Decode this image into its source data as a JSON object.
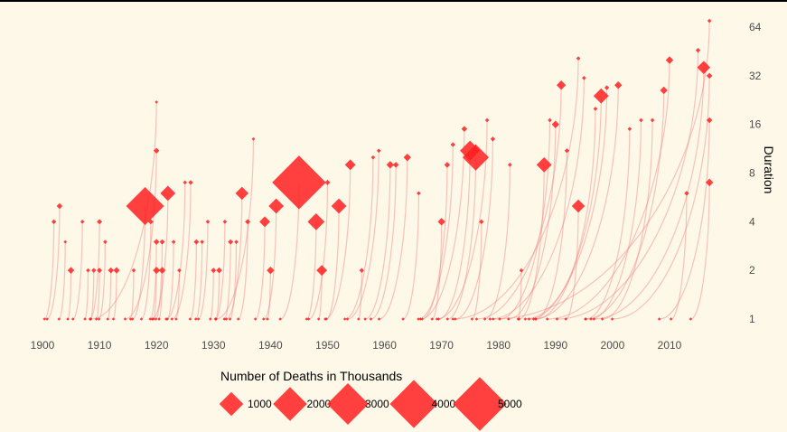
{
  "chart_data": {
    "type": "scatter",
    "x_ticks": [
      1900,
      1910,
      1920,
      1930,
      1940,
      1950,
      1960,
      1970,
      1980,
      1990,
      2000,
      2010
    ],
    "y_ticks": [
      1,
      2,
      4,
      8,
      16,
      32,
      64
    ],
    "y_scale": "log2",
    "xlim": [
      1900,
      2017
    ],
    "ylim": [
      1,
      64
    ],
    "xlabel": "",
    "ylabel": "Duration",
    "legend": {
      "title": "Number of Deaths in Thousands",
      "placement": "bottom",
      "sizes": [
        1000,
        2000,
        3000,
        4000,
        5000
      ]
    },
    "colors": {
      "point": "#ff2020",
      "curve": "#f08080",
      "background": "#fdf8e8"
    },
    "points": [
      {
        "x": 1902,
        "y": 4,
        "d": 40
      },
      {
        "x": 1903,
        "y": 5,
        "d": 60
      },
      {
        "x": 1904,
        "y": 3,
        "d": 20
      },
      {
        "x": 1905,
        "y": 2,
        "d": 80
      },
      {
        "x": 1907,
        "y": 4,
        "d": 30
      },
      {
        "x": 1908,
        "y": 2,
        "d": 30
      },
      {
        "x": 1909,
        "y": 2,
        "d": 40
      },
      {
        "x": 1910,
        "y": 2,
        "d": 50
      },
      {
        "x": 1910,
        "y": 4,
        "d": 50
      },
      {
        "x": 1911,
        "y": 3,
        "d": 30
      },
      {
        "x": 1912,
        "y": 2,
        "d": 60
      },
      {
        "x": 1913,
        "y": 2,
        "d": 70
      },
      {
        "x": 1916,
        "y": 2,
        "d": 30
      },
      {
        "x": 1918,
        "y": 5,
        "d": 2500
      },
      {
        "x": 1919,
        "y": 4,
        "d": 50
      },
      {
        "x": 1920,
        "y": 2,
        "d": 90
      },
      {
        "x": 1920,
        "y": 3,
        "d": 60
      },
      {
        "x": 1920,
        "y": 11,
        "d": 60
      },
      {
        "x": 1920,
        "y": 22,
        "d": 15
      },
      {
        "x": 1921,
        "y": 2,
        "d": 80
      },
      {
        "x": 1921,
        "y": 3,
        "d": 50
      },
      {
        "x": 1922,
        "y": 6,
        "d": 400
      },
      {
        "x": 1923,
        "y": 3,
        "d": 30
      },
      {
        "x": 1924,
        "y": 2,
        "d": 30
      },
      {
        "x": 1925,
        "y": 7,
        "d": 30
      },
      {
        "x": 1926,
        "y": 7,
        "d": 40
      },
      {
        "x": 1927,
        "y": 3,
        "d": 50
      },
      {
        "x": 1928,
        "y": 3,
        "d": 30
      },
      {
        "x": 1929,
        "y": 4,
        "d": 30
      },
      {
        "x": 1930,
        "y": 2,
        "d": 50
      },
      {
        "x": 1931,
        "y": 2,
        "d": 60
      },
      {
        "x": 1932,
        "y": 4,
        "d": 30
      },
      {
        "x": 1933,
        "y": 3,
        "d": 50
      },
      {
        "x": 1934,
        "y": 3,
        "d": 30
      },
      {
        "x": 1935,
        "y": 6,
        "d": 300
      },
      {
        "x": 1936,
        "y": 4,
        "d": 50
      },
      {
        "x": 1937,
        "y": 13,
        "d": 20
      },
      {
        "x": 1939,
        "y": 4,
        "d": 200
      },
      {
        "x": 1940,
        "y": 2,
        "d": 100
      },
      {
        "x": 1941,
        "y": 5,
        "d": 400
      },
      {
        "x": 1945,
        "y": 7,
        "d": 5000
      },
      {
        "x": 1948,
        "y": 4,
        "d": 500
      },
      {
        "x": 1949,
        "y": 2,
        "d": 200
      },
      {
        "x": 1950,
        "y": 7,
        "d": 50
      },
      {
        "x": 1952,
        "y": 5,
        "d": 400
      },
      {
        "x": 1954,
        "y": 9,
        "d": 200
      },
      {
        "x": 1956,
        "y": 2,
        "d": 40
      },
      {
        "x": 1958,
        "y": 10,
        "d": 30
      },
      {
        "x": 1959,
        "y": 11,
        "d": 30
      },
      {
        "x": 1961,
        "y": 9,
        "d": 100
      },
      {
        "x": 1962,
        "y": 9,
        "d": 60
      },
      {
        "x": 1964,
        "y": 10,
        "d": 100
      },
      {
        "x": 1966,
        "y": 6,
        "d": 30
      },
      {
        "x": 1970,
        "y": 4,
        "d": 100
      },
      {
        "x": 1971,
        "y": 9,
        "d": 60
      },
      {
        "x": 1972,
        "y": 12,
        "d": 40
      },
      {
        "x": 1974,
        "y": 15,
        "d": 60
      },
      {
        "x": 1975,
        "y": 11,
        "d": 700
      },
      {
        "x": 1976,
        "y": 10,
        "d": 1200
      },
      {
        "x": 1977,
        "y": 4,
        "d": 40
      },
      {
        "x": 1978,
        "y": 17,
        "d": 30
      },
      {
        "x": 1979,
        "y": 13,
        "d": 40
      },
      {
        "x": 1982,
        "y": 9,
        "d": 30
      },
      {
        "x": 1984,
        "y": 2,
        "d": 30
      },
      {
        "x": 1988,
        "y": 9,
        "d": 400
      },
      {
        "x": 1989,
        "y": 17,
        "d": 30
      },
      {
        "x": 1990,
        "y": 16,
        "d": 100
      },
      {
        "x": 1991,
        "y": 28,
        "d": 150
      },
      {
        "x": 1992,
        "y": 11,
        "d": 40
      },
      {
        "x": 1994,
        "y": 41,
        "d": 30
      },
      {
        "x": 1994,
        "y": 5,
        "d": 300
      },
      {
        "x": 1995,
        "y": 31,
        "d": 30
      },
      {
        "x": 1997,
        "y": 20,
        "d": 30
      },
      {
        "x": 1998,
        "y": 24,
        "d": 400
      },
      {
        "x": 1999,
        "y": 27,
        "d": 40
      },
      {
        "x": 2001,
        "y": 28,
        "d": 100
      },
      {
        "x": 2003,
        "y": 15,
        "d": 30
      },
      {
        "x": 2005,
        "y": 17,
        "d": 30
      },
      {
        "x": 2007,
        "y": 17,
        "d": 30
      },
      {
        "x": 2009,
        "y": 26,
        "d": 100
      },
      {
        "x": 2010,
        "y": 40,
        "d": 100
      },
      {
        "x": 2013,
        "y": 6,
        "d": 40
      },
      {
        "x": 2015,
        "y": 46,
        "d": 40
      },
      {
        "x": 2016,
        "y": 36,
        "d": 300
      },
      {
        "x": 2017,
        "y": 70,
        "d": 30
      },
      {
        "x": 2017,
        "y": 32,
        "d": 60
      },
      {
        "x": 2017,
        "y": 17,
        "d": 60
      },
      {
        "x": 2017,
        "y": 7,
        "d": 100
      }
    ]
  }
}
